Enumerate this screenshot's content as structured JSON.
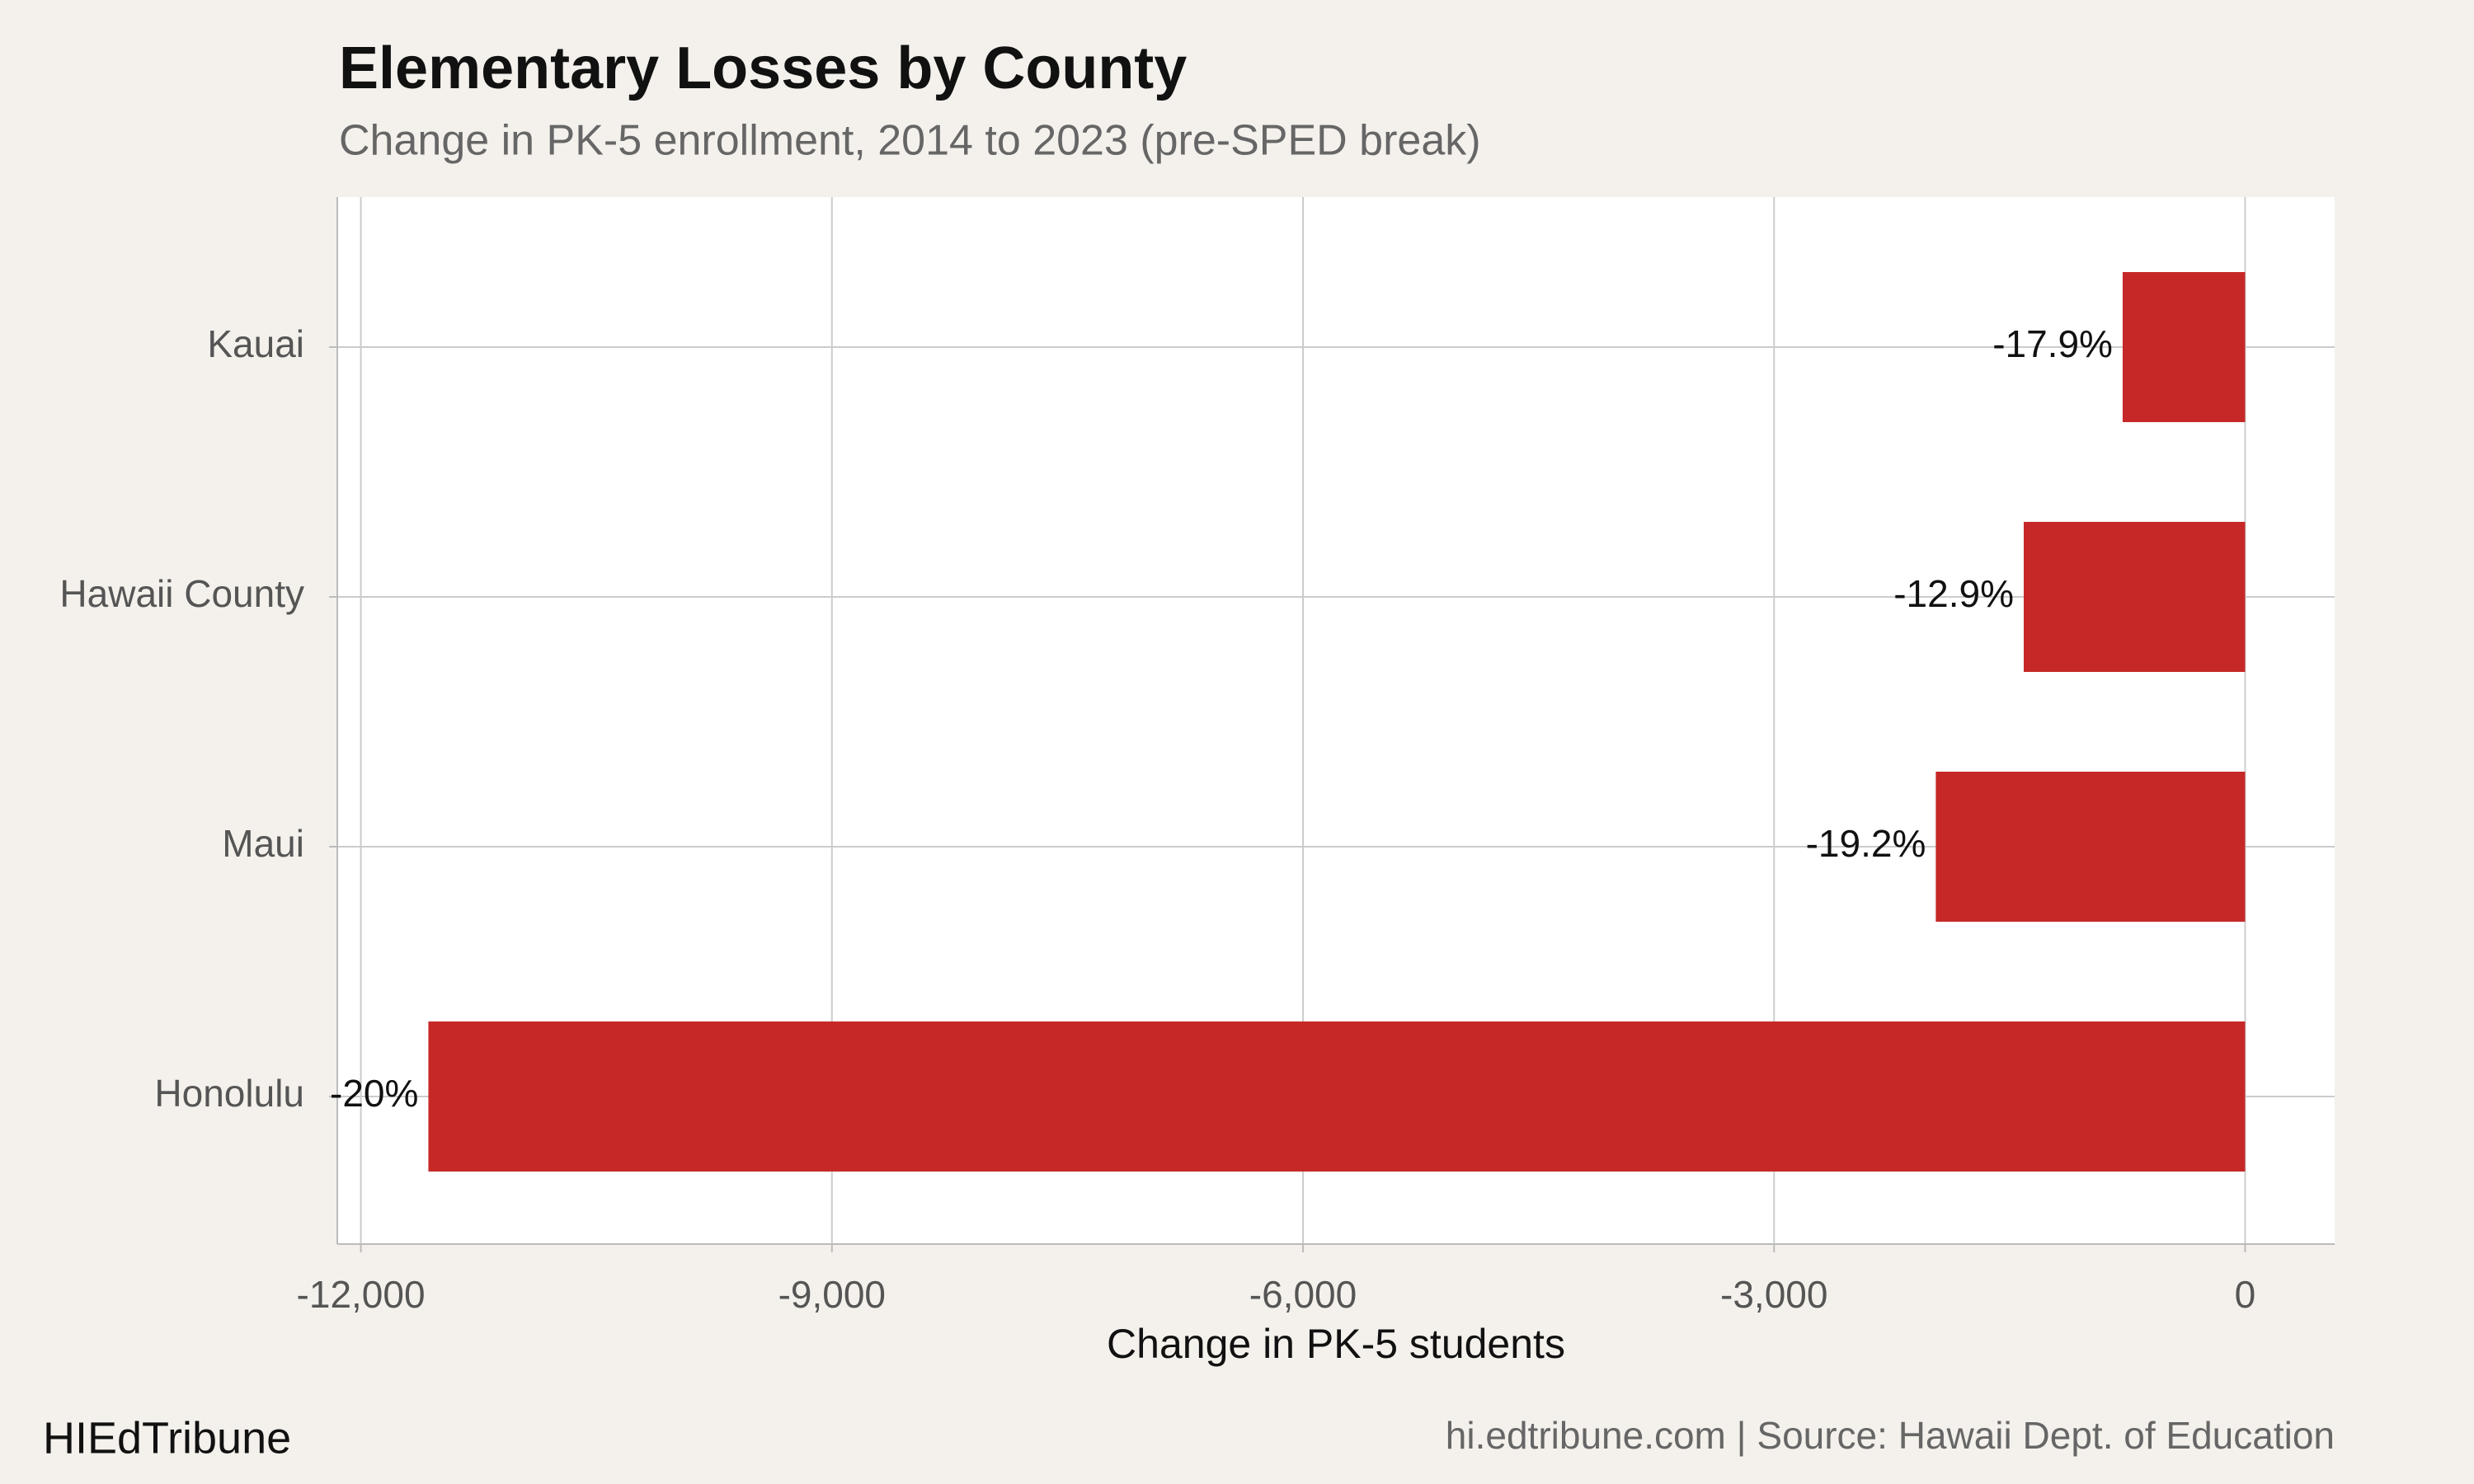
{
  "chart_data": {
    "type": "bar",
    "orientation": "horizontal",
    "title": "Elementary Losses by County",
    "subtitle": "Change in PK-5 enrollment, 2014 to 2023 (pre-SPED break)",
    "x_label": "Change in PK-5 students",
    "categories": [
      "Kauai",
      "Hawaii County",
      "Maui",
      "Honolulu"
    ],
    "values": [
      -780,
      -1410,
      -1970,
      -11570
    ],
    "percent_labels": [
      "-17.9%",
      "-12.9%",
      "-19.2%",
      "-20%"
    ],
    "color": "#c62828",
    "xlim": [
      -12150,
      570
    ],
    "xticks": [
      {
        "value": -12000,
        "label": "-12,000"
      },
      {
        "value": -9000,
        "label": "-9,000"
      },
      {
        "value": -6000,
        "label": "-6,000"
      },
      {
        "value": -3000,
        "label": "-3,000"
      },
      0
    ],
    "grid": true,
    "brand": "HIEdTribune",
    "source": "hi.edtribune.com | Source: Hawaii Dept. of Education"
  }
}
